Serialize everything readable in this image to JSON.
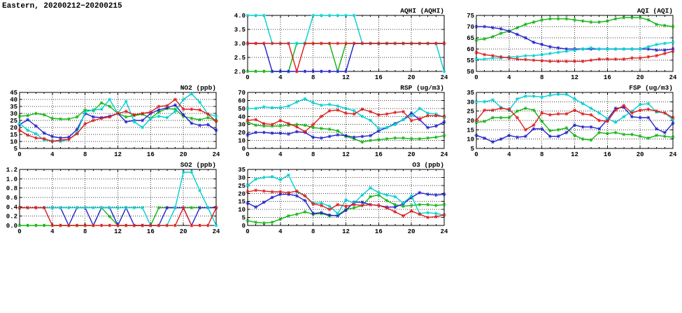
{
  "page_title": "Eastern, 20200212−20200215",
  "palette": {
    "red": "#dd1c1c",
    "green": "#10b410",
    "blue": "#2222cc",
    "cyan": "#00cfcf"
  },
  "chart_data": [
    {
      "key": "aqhi",
      "title": "AQHI (AQHI)",
      "type": "line",
      "xlim": [
        0,
        24
      ],
      "xticks": [
        0,
        4,
        8,
        12,
        16,
        20,
        24
      ],
      "xtick_labels": [
        "0",
        "4",
        "8",
        "12",
        "16",
        "20",
        "24"
      ],
      "ylim": [
        2.0,
        4.0
      ],
      "yticks": [
        2.0,
        2.5,
        3.0,
        3.5,
        4.0
      ],
      "ytick_labels": [
        "2.0",
        "2.5",
        "3.0",
        "3.5",
        "4.0"
      ],
      "grid": true,
      "legend": "none",
      "series": [
        {
          "name": "green",
          "color": "#10b410",
          "values": [
            2,
            2,
            2,
            2,
            2,
            2,
            3,
            3,
            3,
            3,
            3,
            2,
            3,
            3,
            3,
            3,
            3,
            3,
            3,
            3,
            3,
            3,
            3,
            3,
            3
          ]
        },
        {
          "name": "blue",
          "color": "#2222cc",
          "values": [
            3,
            3,
            3,
            2,
            2,
            2,
            2,
            2,
            2,
            2,
            2,
            2,
            2,
            3,
            3,
            3,
            3,
            3,
            3,
            3,
            3,
            3,
            3,
            3,
            3
          ]
        },
        {
          "name": "cyan",
          "color": "#00cfcf",
          "values": [
            4,
            4,
            4,
            3,
            3,
            3,
            3,
            3,
            4,
            4,
            4,
            4,
            4,
            4,
            3,
            3,
            3,
            3,
            3,
            3,
            3,
            3,
            3,
            3,
            2
          ]
        },
        {
          "name": "red",
          "color": "#dd1c1c",
          "values": [
            3,
            3,
            3,
            3,
            3,
            3,
            2,
            3,
            3,
            3,
            3,
            3,
            3,
            3,
            3,
            3,
            3,
            3,
            3,
            3,
            3,
            3,
            3,
            3,
            3
          ]
        }
      ]
    },
    {
      "key": "aqi",
      "title": "AQI (AQI)",
      "type": "line",
      "xlim": [
        0,
        24
      ],
      "xticks": [
        0,
        4,
        8,
        12,
        16,
        20,
        24
      ],
      "xtick_labels": [
        "0",
        "4",
        "8",
        "12",
        "16",
        "20",
        "24"
      ],
      "ylim": [
        50,
        75
      ],
      "yticks": [
        50,
        55,
        60,
        65,
        70,
        75
      ],
      "ytick_labels": [
        "50",
        "55",
        "60",
        "65",
        "70",
        "75"
      ],
      "grid": true,
      "legend": "none",
      "series": [
        {
          "name": "green",
          "color": "#10b410",
          "values": [
            64,
            64.5,
            65.5,
            67,
            68,
            69.5,
            71,
            72,
            73,
            73.5,
            73.5,
            73.5,
            73,
            72.5,
            72,
            72,
            72.5,
            73.5,
            74,
            74,
            74,
            73,
            71,
            70.5,
            70
          ]
        },
        {
          "name": "blue",
          "color": "#2222cc",
          "values": [
            70,
            70,
            69.5,
            69,
            68,
            66.5,
            65,
            63,
            62,
            61,
            60.5,
            60,
            60,
            60,
            60,
            60,
            60,
            60,
            60,
            60,
            60,
            60,
            59.5,
            59.5,
            60
          ]
        },
        {
          "name": "cyan",
          "color": "#00cfcf",
          "values": [
            55.5,
            55.5,
            56,
            56,
            56.5,
            56.5,
            57,
            57,
            57.5,
            58,
            58.5,
            59,
            59.5,
            60,
            60.5,
            60,
            60,
            60,
            60,
            60,
            60,
            61,
            62,
            62.5,
            63
          ]
        },
        {
          "name": "red",
          "color": "#dd1c1c",
          "values": [
            58.5,
            57.5,
            57,
            56.5,
            56,
            55.5,
            55.3,
            55,
            54.8,
            54.5,
            54.5,
            54.5,
            54.5,
            54.5,
            55,
            55.5,
            55.5,
            55.5,
            55.5,
            56,
            56,
            56.5,
            57,
            58,
            59
          ]
        }
      ]
    },
    {
      "key": "no2",
      "title": "NO2 (ppb)",
      "type": "line",
      "xlim": [
        0,
        24
      ],
      "xticks": [
        0,
        4,
        8,
        12,
        16,
        20,
        24
      ],
      "xtick_labels": [
        "0",
        "4",
        "8",
        "12",
        "16",
        "20",
        "24"
      ],
      "ylim": [
        5,
        45
      ],
      "yticks": [
        5,
        10,
        15,
        20,
        25,
        30,
        35,
        40,
        45
      ],
      "ytick_labels": [
        "5",
        "10",
        "15",
        "20",
        "25",
        "30",
        "35",
        "40",
        "45"
      ],
      "grid": true,
      "legend": "none",
      "series": [
        {
          "name": "green",
          "color": "#10b410",
          "values": [
            28,
            28.5,
            30,
            29,
            26.5,
            26,
            26,
            27.5,
            32.5,
            32,
            37.5,
            35,
            30,
            27.5,
            28.5,
            29.5,
            26.5,
            31,
            33.5,
            33,
            28,
            26.5,
            25.5,
            27,
            25
          ]
        },
        {
          "name": "blue",
          "color": "#2222cc",
          "values": [
            22,
            25.5,
            21,
            16,
            13.5,
            12.5,
            13,
            18.5,
            30,
            27.5,
            27,
            28,
            30,
            24,
            25,
            25,
            30,
            32.5,
            34,
            36,
            29,
            23,
            21.5,
            22,
            18
          ]
        },
        {
          "name": "cyan",
          "color": "#00cfcf",
          "values": [
            23,
            18,
            15.5,
            11,
            10.5,
            10,
            11.5,
            16,
            31,
            32.5,
            33,
            40,
            30,
            38.5,
            24,
            20,
            26.5,
            28,
            27,
            31.5,
            40,
            44,
            38,
            29.5,
            28
          ]
        },
        {
          "name": "red",
          "color": "#dd1c1c",
          "values": [
            18,
            14.5,
            12.5,
            12,
            10,
            11,
            11.5,
            15.5,
            22.5,
            25,
            26.5,
            27.5,
            30,
            31.5,
            29,
            30,
            31,
            35,
            35.5,
            40,
            33,
            33,
            32.5,
            29.5,
            24.5
          ]
        }
      ]
    },
    {
      "key": "rsp",
      "title": "RSP (ug/m3)",
      "type": "line",
      "xlim": [
        0,
        24
      ],
      "xticks": [
        0,
        4,
        8,
        12,
        16,
        20,
        24
      ],
      "xtick_labels": [
        "0",
        "4",
        "8",
        "12",
        "16",
        "20",
        "24"
      ],
      "ylim": [
        0,
        70
      ],
      "yticks": [
        0,
        10,
        20,
        30,
        40,
        50,
        60,
        70
      ],
      "ytick_labels": [
        "0",
        "10",
        "20",
        "30",
        "40",
        "50",
        "60",
        "70"
      ],
      "grid": true,
      "legend": "none",
      "series": [
        {
          "name": "green",
          "color": "#10b410",
          "values": [
            33,
            29,
            28,
            28,
            28,
            29,
            30,
            29,
            26,
            25,
            24,
            22,
            15,
            12,
            8,
            10,
            11,
            12,
            13,
            13,
            12,
            12,
            13,
            14,
            16
          ]
        },
        {
          "name": "blue",
          "color": "#2222cc",
          "values": [
            17,
            20,
            20,
            19,
            19,
            18,
            21,
            20,
            14,
            13,
            15,
            17,
            16,
            14,
            15,
            16,
            22,
            26,
            31,
            36,
            44,
            36,
            26,
            28,
            33
          ]
        },
        {
          "name": "cyan",
          "color": "#00cfcf",
          "values": [
            50,
            50,
            52,
            51,
            51,
            53,
            58,
            62,
            57,
            54,
            55,
            53,
            50,
            47,
            40,
            35,
            25,
            26,
            30,
            36,
            41,
            50,
            44,
            43,
            39
          ]
        },
        {
          "name": "red",
          "color": "#dd1c1c",
          "values": [
            35,
            36,
            31,
            30,
            35,
            31,
            27,
            21,
            30,
            40,
            47,
            48,
            44,
            43,
            49,
            46,
            42,
            43,
            45,
            46,
            35,
            37,
            41,
            41,
            40
          ]
        }
      ]
    },
    {
      "key": "fsp",
      "title": "FSP (ug/m3)",
      "type": "line",
      "xlim": [
        0,
        24
      ],
      "xticks": [
        0,
        4,
        8,
        12,
        16,
        20,
        24
      ],
      "xtick_labels": [
        "0",
        "4",
        "8",
        "12",
        "16",
        "20",
        "24"
      ],
      "ylim": [
        5,
        35
      ],
      "yticks": [
        5,
        10,
        15,
        20,
        25,
        30,
        35
      ],
      "ytick_labels": [
        "5",
        "10",
        "15",
        "20",
        "25",
        "30",
        "35"
      ],
      "grid": true,
      "legend": "none",
      "series": [
        {
          "name": "green",
          "color": "#10b410",
          "values": [
            19,
            19.5,
            21.5,
            21.5,
            21.5,
            25,
            26.5,
            25.5,
            19.5,
            14.5,
            15,
            16,
            12,
            10,
            9.5,
            13.5,
            13,
            13.5,
            12.5,
            12.5,
            11.5,
            10.5,
            12,
            11.5,
            11
          ]
        },
        {
          "name": "blue",
          "color": "#2222cc",
          "values": [
            12,
            10.5,
            8.5,
            10,
            12,
            11,
            11.5,
            15.5,
            15.5,
            11.5,
            11.5,
            13.5,
            17.5,
            16.5,
            16.5,
            15.5,
            20.5,
            26.5,
            27,
            22,
            21.5,
            21.5,
            15.5,
            13.5,
            18.5
          ]
        },
        {
          "name": "cyan",
          "color": "#00cfcf",
          "values": [
            30,
            30,
            31,
            27,
            25.5,
            31.5,
            33,
            33,
            32.5,
            33.5,
            34,
            34,
            31.5,
            29,
            26.5,
            24,
            21,
            19,
            22,
            25,
            28.5,
            29,
            24.5,
            24,
            20.5
          ]
        },
        {
          "name": "red",
          "color": "#dd1c1c",
          "values": [
            20,
            25.5,
            25.5,
            26.5,
            26,
            21.5,
            15,
            17.5,
            24,
            23,
            23.5,
            23.5,
            25.5,
            23.5,
            23,
            20,
            19.5,
            25.5,
            28,
            24,
            25.5,
            26,
            25,
            24,
            21.5
          ]
        }
      ]
    },
    {
      "key": "so2",
      "title": "SO2 (ppb)",
      "type": "line",
      "xlim": [
        0,
        24
      ],
      "xticks": [
        0,
        4,
        8,
        12,
        16,
        20,
        24
      ],
      "xtick_labels": [
        "0",
        "4",
        "8",
        "12",
        "16",
        "20",
        "24"
      ],
      "ylim": [
        0.0,
        1.2
      ],
      "yticks": [
        0.0,
        0.2,
        0.4,
        0.6,
        0.8,
        1.0,
        1.2
      ],
      "ytick_labels": [
        "0.0",
        "0.2",
        "0.4",
        "0.6",
        "0.8",
        "1.0",
        "1.2"
      ],
      "grid": true,
      "legend": "none",
      "series": [
        {
          "name": "green",
          "color": "#10b410",
          "values": [
            0,
            0,
            0,
            0,
            0,
            0,
            0,
            0,
            0,
            0,
            0.38,
            0.19,
            0,
            0,
            0,
            0,
            0,
            0.38,
            0.38,
            0.38,
            0.38,
            0.38,
            0.38,
            0.38,
            0.38
          ]
        },
        {
          "name": "blue",
          "color": "#2222cc",
          "values": [
            0.38,
            0.38,
            0.38,
            0.38,
            0.38,
            0.38,
            0,
            0.38,
            0.38,
            0,
            0.38,
            0.38,
            0,
            0.38,
            0,
            0,
            0,
            0,
            0.38,
            0.38,
            0.38,
            0,
            0.38,
            0.38,
            0.38
          ]
        },
        {
          "name": "cyan",
          "color": "#00cfcf",
          "values": [
            0.38,
            0.38,
            0.38,
            0.38,
            0.38,
            0.38,
            0.38,
            0.38,
            0.38,
            0.38,
            0.38,
            0.38,
            0.38,
            0.38,
            0.38,
            0.38,
            0,
            0,
            0,
            0.38,
            1.14,
            1.14,
            0.75,
            0.38,
            0
          ]
        },
        {
          "name": "red",
          "color": "#dd1c1c",
          "values": [
            0.38,
            0.38,
            0.38,
            0.38,
            0,
            0,
            0,
            0,
            0,
            0,
            0,
            0,
            0,
            0,
            0,
            0,
            0,
            0,
            0,
            0,
            0.38,
            0,
            0,
            0,
            0.38
          ]
        }
      ]
    },
    {
      "key": "o3",
      "title": "O3 (ppb)",
      "type": "line",
      "xlim": [
        0,
        24
      ],
      "xticks": [
        0,
        4,
        8,
        12,
        16,
        20,
        24
      ],
      "xtick_labels": [
        "0",
        "4",
        "8",
        "12",
        "16",
        "20",
        "24"
      ],
      "ylim": [
        0,
        35
      ],
      "yticks": [
        0,
        5,
        10,
        15,
        20,
        25,
        30,
        35
      ],
      "ytick_labels": [
        "0",
        "5",
        "10",
        "15",
        "20",
        "25",
        "30",
        "35"
      ],
      "grid": true,
      "legend": "none",
      "series": [
        {
          "name": "green",
          "color": "#10b410",
          "values": [
            3,
            2,
            1.5,
            2,
            4,
            6,
            7,
            8.5,
            7,
            7.5,
            6,
            6.5,
            10,
            11,
            12.5,
            18,
            19,
            15.5,
            13,
            12,
            12.5,
            13,
            13,
            12.5,
            13
          ]
        },
        {
          "name": "blue",
          "color": "#2222cc",
          "values": [
            14,
            11.5,
            14.5,
            17.5,
            19.5,
            19.5,
            18.5,
            15.5,
            7.5,
            8,
            6.5,
            6,
            9.5,
            14.5,
            14.5,
            13,
            12.5,
            11.5,
            11.5,
            13.5,
            17.5,
            20.5,
            19.5,
            19,
            19.5
          ]
        },
        {
          "name": "cyan",
          "color": "#00cfcf",
          "values": [
            25,
            29,
            30,
            30.5,
            28.5,
            31.5,
            21,
            18.5,
            14,
            14,
            12,
            7.5,
            16,
            14,
            19,
            23.5,
            20.5,
            19,
            18,
            14,
            18.5,
            7.5,
            8,
            7.5,
            6.5
          ]
        },
        {
          "name": "red",
          "color": "#dd1c1c",
          "values": [
            21,
            22,
            21.5,
            21,
            21,
            20.5,
            21.5,
            18.5,
            13.5,
            12.5,
            10,
            13,
            12,
            13,
            12.5,
            13,
            12.5,
            11,
            8.5,
            6,
            9,
            7,
            5,
            5.5,
            6.5
          ]
        }
      ]
    }
  ]
}
